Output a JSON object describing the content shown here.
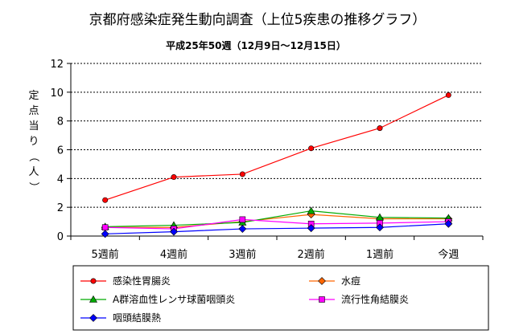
{
  "chart_data": {
    "type": "line",
    "title": "京都府感染症発生動向調査（上位5疾患の推移グラフ）",
    "subtitle": "平成25年50週（12月9日～12月15日）",
    "ylabel": "定点当り（人）",
    "xlabel": "",
    "categories": [
      "5週前",
      "4週前",
      "3週前",
      "2週前",
      "1週前",
      "今週"
    ],
    "ylim": [
      0,
      12
    ],
    "yticks": [
      0,
      2,
      4,
      6,
      8,
      10,
      12
    ],
    "grid": true,
    "legend_position": "bottom",
    "series": [
      {
        "name": "感染性胃腸炎",
        "values": [
          2.5,
          4.1,
          4.3,
          6.1,
          7.5,
          9.8
        ],
        "color": "#ff0000",
        "marker": "circle"
      },
      {
        "name": "水痘",
        "values": [
          0.6,
          0.6,
          1.0,
          1.5,
          1.2,
          1.2
        ],
        "color": "#ff6600",
        "marker": "diamond"
      },
      {
        "name": "A群溶血性レンサ球菌咽頭炎",
        "values": [
          0.65,
          0.75,
          0.95,
          1.75,
          1.3,
          1.25
        ],
        "color": "#00aa00",
        "marker": "triangle"
      },
      {
        "name": "流行性角結膜炎",
        "values": [
          0.6,
          0.5,
          1.15,
          0.85,
          0.9,
          1.0
        ],
        "color": "#ff00ff",
        "marker": "square"
      },
      {
        "name": "咽頭結膜熱",
        "values": [
          0.15,
          0.3,
          0.5,
          0.55,
          0.6,
          0.85
        ],
        "color": "#0000ff",
        "marker": "diamond"
      }
    ]
  }
}
